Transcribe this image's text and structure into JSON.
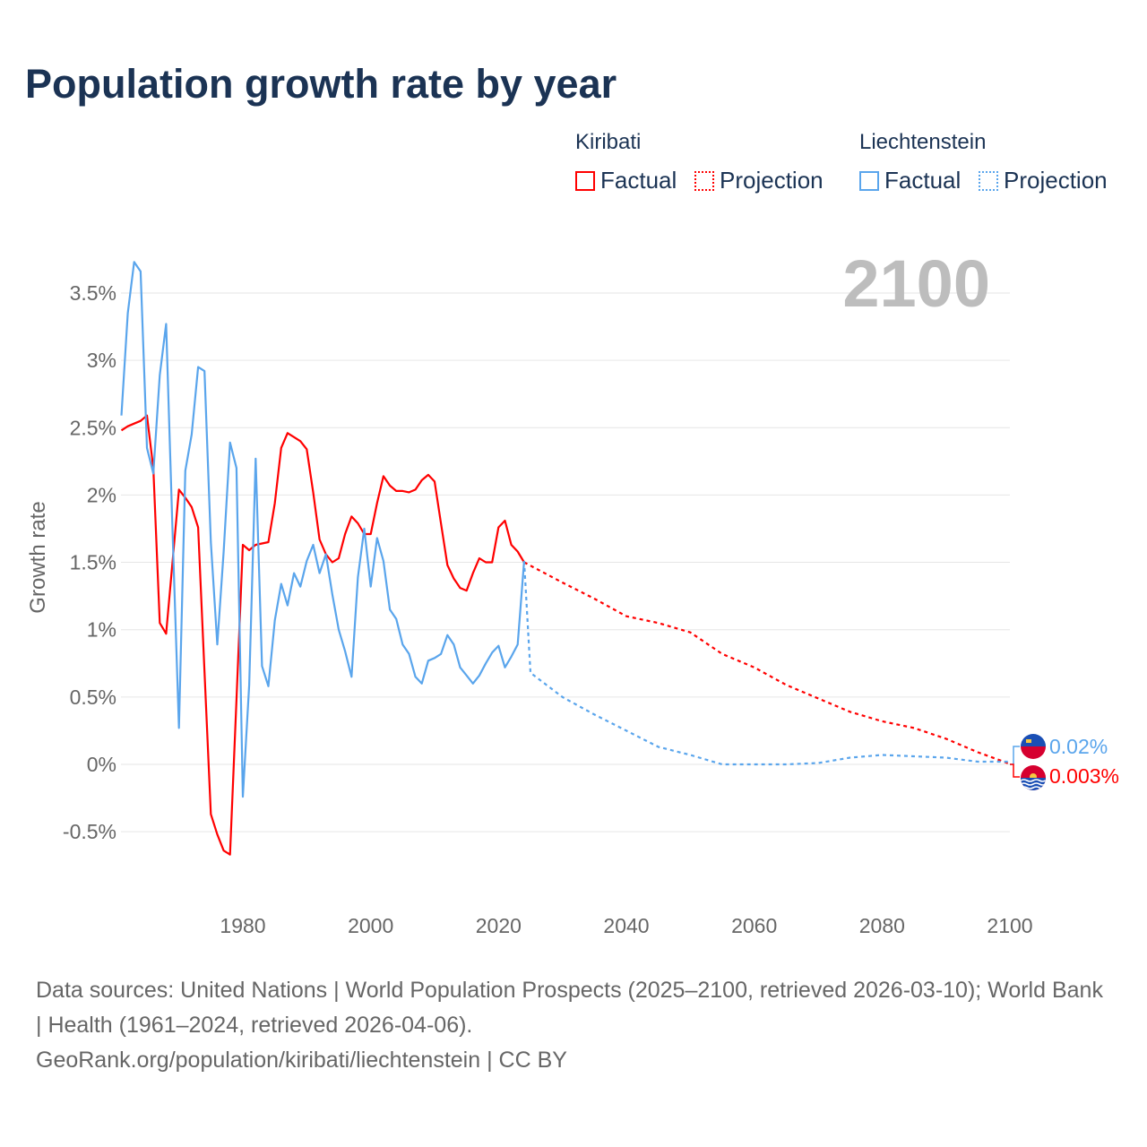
{
  "title": "Population growth rate by year",
  "legend": {
    "groups": [
      {
        "name": "Kiribati",
        "factual": "Factual",
        "projection": "Projection",
        "color": "#ff0000"
      },
      {
        "name": "Liechtenstein",
        "factual": "Factual",
        "projection": "Projection",
        "color": "#5aa5ec"
      }
    ]
  },
  "year_watermark": "2100",
  "end_labels": {
    "liechtenstein": "0.02%",
    "kiribati": "0.003%"
  },
  "footer": {
    "sources": "Data sources: United Nations | World Population Prospects (2025–2100, retrieved 2026-03-10); World Bank | Health (1961–2024, retrieved 2026-04-06).",
    "credit": "GeoRank.org/population/kiribati/liechtenstein | CC BY"
  },
  "chart_data": {
    "type": "line",
    "title": "Population growth rate by year",
    "xlabel": "",
    "ylabel": "Growth rate",
    "xlim": [
      1961,
      2100
    ],
    "ylim": [
      -0.9,
      3.8
    ],
    "x_ticks": [
      "1980",
      "2000",
      "2020",
      "2040",
      "2060",
      "2080",
      "2100"
    ],
    "y_ticks": [
      {
        "v": 3.5,
        "label": "3.5%"
      },
      {
        "v": 3,
        "label": "3%"
      },
      {
        "v": 2.5,
        "label": "2.5%"
      },
      {
        "v": 2,
        "label": "2%"
      },
      {
        "v": 1.5,
        "label": "1.5%"
      },
      {
        "v": 1,
        "label": "1%"
      },
      {
        "v": 0.5,
        "label": "0.5%"
      },
      {
        "v": 0,
        "label": "0%"
      },
      {
        "v": -0.5,
        "label": "-0.5%"
      }
    ],
    "grid": true,
    "legend_position": "top-right",
    "series": [
      {
        "name": "Kiribati Factual",
        "color": "#ff0000",
        "dashed": false,
        "start_year": 1961,
        "values": [
          2.48,
          2.51,
          2.53,
          2.55,
          2.59,
          2.2,
          1.05,
          0.97,
          1.5,
          2.04,
          1.98,
          1.91,
          1.76,
          0.69,
          -0.37,
          -0.52,
          -0.64,
          -0.67,
          0.48,
          1.63,
          1.59,
          1.63,
          1.64,
          1.65,
          1.94,
          2.35,
          2.46,
          2.43,
          2.4,
          2.34,
          2.02,
          1.67,
          1.56,
          1.5,
          1.53,
          1.71,
          1.84,
          1.79,
          1.71,
          1.71,
          1.94,
          2.14,
          2.07,
          2.03,
          2.03,
          2.02,
          2.04,
          2.11,
          2.15,
          2.1,
          1.79,
          1.48,
          1.38,
          1.31,
          1.29,
          1.42,
          1.53,
          1.5,
          1.5,
          1.76,
          1.81,
          1.63,
          1.58,
          1.5
        ]
      },
      {
        "name": "Liechtenstein Factual",
        "color": "#5aa5ec",
        "dashed": false,
        "start_year": 1961,
        "values": [
          2.59,
          3.35,
          3.73,
          3.66,
          2.35,
          2.16,
          2.89,
          3.27,
          1.74,
          0.27,
          2.18,
          2.45,
          2.95,
          2.92,
          1.65,
          0.89,
          1.58,
          2.39,
          2.2,
          -0.24,
          0.59,
          2.27,
          0.73,
          0.58,
          1.07,
          1.34,
          1.18,
          1.42,
          1.32,
          1.51,
          1.63,
          1.42,
          1.56,
          1.26,
          1.0,
          0.84,
          0.65,
          1.39,
          1.75,
          1.32,
          1.68,
          1.51,
          1.15,
          1.08,
          0.89,
          0.82,
          0.65,
          0.6,
          0.77,
          0.79,
          0.82,
          0.96,
          0.89,
          0.72,
          0.66,
          0.6,
          0.66,
          0.75,
          0.83,
          0.88,
          0.72,
          0.8,
          0.89,
          1.51
        ]
      },
      {
        "name": "Kiribati Projection",
        "color": "#ff0000",
        "dashed": true,
        "years": [
          2024,
          2030,
          2035,
          2040,
          2045,
          2050,
          2055,
          2060,
          2065,
          2070,
          2075,
          2080,
          2085,
          2090,
          2095,
          2100
        ],
        "values": [
          1.5,
          1.35,
          1.23,
          1.1,
          1.05,
          0.98,
          0.82,
          0.72,
          0.59,
          0.49,
          0.39,
          0.32,
          0.27,
          0.19,
          0.09,
          0.003
        ]
      },
      {
        "name": "Liechtenstein Projection",
        "color": "#5aa5ec",
        "dashed": true,
        "years": [
          2024,
          2025,
          2030,
          2035,
          2040,
          2045,
          2050,
          2055,
          2060,
          2065,
          2070,
          2075,
          2080,
          2085,
          2090,
          2095,
          2100
        ],
        "values": [
          1.51,
          0.68,
          0.5,
          0.37,
          0.25,
          0.13,
          0.07,
          0.0,
          0.0,
          0.0,
          0.01,
          0.05,
          0.07,
          0.06,
          0.05,
          0.02,
          0.02
        ]
      }
    ]
  }
}
